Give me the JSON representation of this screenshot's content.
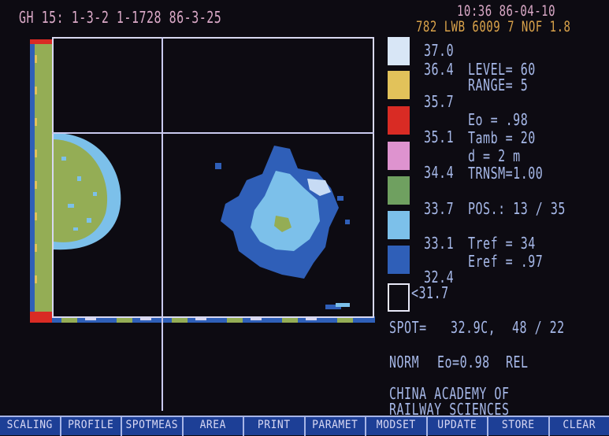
{
  "header": {
    "file_line": "GH 15: 1-3-2  1-1728  86-3-25",
    "clock": "10:36  86-04-10",
    "device_line": "782 LWB 6009 7 NOF 1.8"
  },
  "legend": {
    "swatch_colors": [
      "#d8e6f6",
      "#e2c25a",
      "#d92b24",
      "#de93cf",
      "#6fa060",
      "#7cc0ea",
      "#2f5fb8",
      "#0d0b12"
    ],
    "labels": [
      "37.0",
      "36.4",
      "35.7",
      "35.1",
      "34.4",
      "33.7",
      "33.1",
      "32.4",
      "<31.7"
    ]
  },
  "params": {
    "level": "LEVEL= 60",
    "range": "RANGE= 5",
    "eo": "Eo   = .98",
    "tamb": "Tamb = 20",
    "d": "d    = 2 m",
    "trnsm": "TRNSM=1.00",
    "pos": "POS.: 13 / 35",
    "tref": "Tref = 34",
    "eref": "Eref = .97"
  },
  "spot": {
    "label": "SPOT=",
    "value": "32.9C,",
    "coords": "48 / 22"
  },
  "norm": {
    "mode": "NORM",
    "eo": "Eo=0.98",
    "rel": "REL"
  },
  "institution": {
    "line1": "CHINA ACADEMY OF",
    "line2": "RAILWAY SCIENCES"
  },
  "menu": [
    "SCALING",
    "PROFILE",
    "SPOTMEAS",
    "AREA",
    "PRINT",
    "PARAMET",
    "MODSET",
    "UPDATE",
    "STORE",
    "CLEAR"
  ]
}
